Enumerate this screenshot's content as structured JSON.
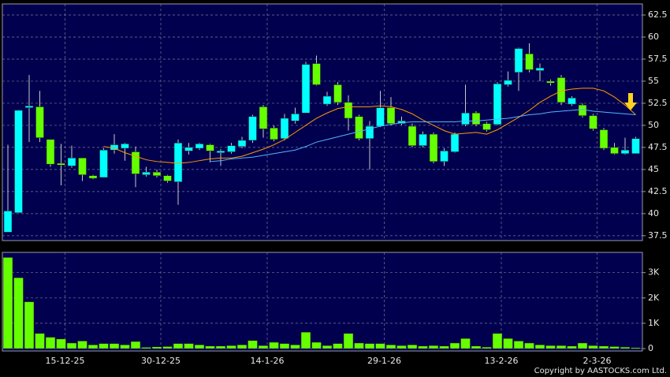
{
  "chart_data": [
    {
      "type": "candlestick",
      "open": [
        37.9,
        40.1,
        52.0,
        52.1,
        48.4,
        45.7,
        45.4,
        46.3,
        44.3,
        44.1,
        47.2,
        47.4,
        47.0,
        44.4,
        44.7,
        44.3,
        43.6,
        47.1,
        47.4,
        47.8,
        46.9,
        47.0,
        47.6,
        48.3,
        52.1,
        49.7,
        48.5,
        50.5,
        51.4,
        57.0,
        52.4,
        54.6,
        52.6,
        51.0,
        48.5,
        49.9,
        52.0,
        50.2,
        49.9,
        47.7,
        49.0,
        45.9,
        47.0,
        50.1,
        51.4,
        50.2,
        50.1,
        54.6,
        56.0,
        58.1,
        56.2,
        55.0,
        55.4,
        52.4,
        52.3,
        51.1,
        49.5,
        47.5,
        46.8,
        46.8
      ],
      "high": [
        47.8,
        51.7,
        55.7,
        53.9,
        48.4,
        47.9,
        47.7,
        46.3,
        44.4,
        47.4,
        49.0,
        48.0,
        47.6,
        45.3,
        45.0,
        44.4,
        48.4,
        48.0,
        48.0,
        47.9,
        47.3,
        48.0,
        48.7,
        51.2,
        52.3,
        50.0,
        51.3,
        52.0,
        57.2,
        57.9,
        53.8,
        54.9,
        53.4,
        51.2,
        50.5,
        53.9,
        53.2,
        51.0,
        50.2,
        49.3,
        49.2,
        47.4,
        49.2,
        54.6,
        51.6,
        50.4,
        54.9,
        56.1,
        58.8,
        59.3,
        57.0,
        55.2,
        55.7,
        53.3,
        52.5,
        51.3,
        49.7,
        48.0,
        48.6,
        48.7
      ],
      "low": [
        37.9,
        40.1,
        48.1,
        48.1,
        45.3,
        43.2,
        45.2,
        43.7,
        43.9,
        44.1,
        46.8,
        46.0,
        43.0,
        44.2,
        44.1,
        43.5,
        41.0,
        46.7,
        47.2,
        45.8,
        45.4,
        46.8,
        47.4,
        48.0,
        48.6,
        48.2,
        48.3,
        50.2,
        51.4,
        54.5,
        52.2,
        52.3,
        49.4,
        48.3,
        45.0,
        49.8,
        50.0,
        50.0,
        47.5,
        47.5,
        45.7,
        45.4,
        46.9,
        49.9,
        49.9,
        49.3,
        50.0,
        54.4,
        53.9,
        56.0,
        55.0,
        54.5,
        52.3,
        52.2,
        50.9,
        49.4,
        47.2,
        46.7,
        46.7,
        46.8
      ],
      "close": [
        40.3,
        51.7,
        52.2,
        48.6,
        45.6,
        45.5,
        46.3,
        44.4,
        44.0,
        47.2,
        47.8,
        47.9,
        44.5,
        44.7,
        44.3,
        43.7,
        48.0,
        47.5,
        47.9,
        47.1,
        47.1,
        47.7,
        48.3,
        51.0,
        49.6,
        48.4,
        50.8,
        51.3,
        56.9,
        54.6,
        53.3,
        52.6,
        50.8,
        48.5,
        49.9,
        52.0,
        50.2,
        50.5,
        47.7,
        49.0,
        45.9,
        47.1,
        49.0,
        51.4,
        50.1,
        49.5,
        54.7,
        55.1,
        58.7,
        56.3,
        56.5,
        54.8,
        52.6,
        53.1,
        51.1,
        49.6,
        47.4,
        46.8,
        47.2,
        48.5
      ],
      "up_color": "#00ffff",
      "down_color": "#66ff00",
      "lines": [
        {
          "color": "#ff9900",
          "values": [
            null,
            null,
            null,
            null,
            null,
            null,
            null,
            null,
            null,
            47.6,
            47.4,
            46.9,
            46.5,
            46.1,
            45.9,
            45.8,
            45.7,
            45.8,
            46.0,
            46.2,
            46.3,
            46.3,
            46.5,
            46.9,
            47.3,
            47.8,
            48.4,
            49.2,
            50.0,
            50.8,
            51.4,
            51.9,
            52.1,
            52.1,
            52.1,
            52.2,
            52.1,
            51.8,
            51.3,
            50.6,
            50.0,
            49.4,
            49.0,
            49.1,
            49.2,
            49.0,
            49.5,
            50.2,
            50.9,
            51.7,
            52.6,
            53.3,
            53.9,
            54.1,
            54.2,
            54.2,
            53.9,
            53.2,
            52.3,
            51.2
          ]
        },
        {
          "color": "#55b4ff",
          "values": [
            null,
            null,
            null,
            null,
            null,
            null,
            null,
            null,
            null,
            null,
            null,
            null,
            null,
            null,
            null,
            null,
            null,
            null,
            null,
            45.9,
            46.0,
            46.2,
            46.3,
            46.4,
            46.6,
            46.8,
            47.0,
            47.2,
            47.6,
            48.1,
            48.4,
            48.7,
            49.0,
            49.3,
            49.6,
            49.9,
            50.1,
            50.3,
            50.4,
            50.4,
            50.4,
            50.4,
            50.4,
            50.5,
            50.5,
            50.6,
            50.7,
            50.8,
            51.0,
            51.2,
            51.3,
            51.5,
            51.6,
            51.7,
            51.8,
            51.6,
            51.5,
            51.4,
            51.3,
            51.2
          ]
        }
      ],
      "ylim": [
        36.95,
        63.75
      ],
      "yticks": [
        37.5,
        40,
        42.5,
        45,
        47.5,
        50,
        52.5,
        55,
        57.5,
        60,
        62.5
      ],
      "grid": true
    },
    {
      "type": "bar",
      "categories": [
        null,
        null,
        null,
        null,
        null,
        "15-12-25",
        null,
        null,
        null,
        null,
        null,
        null,
        null,
        null,
        "30-12-25",
        null,
        null,
        null,
        null,
        null,
        null,
        null,
        null,
        null,
        "14-1-26",
        null,
        null,
        null,
        null,
        null,
        null,
        null,
        null,
        null,
        null,
        "29-1-26",
        null,
        null,
        null,
        null,
        null,
        null,
        null,
        null,
        null,
        null,
        "13-2-26",
        null,
        null,
        null,
        null,
        null,
        null,
        null,
        null,
        "2-3-26",
        null,
        null,
        null,
        null
      ],
      "values": [
        3600,
        2800,
        1850,
        600,
        450,
        380,
        220,
        300,
        150,
        200,
        200,
        150,
        280,
        50,
        70,
        80,
        200,
        200,
        150,
        100,
        100,
        120,
        150,
        320,
        120,
        250,
        200,
        150,
        650,
        250,
        120,
        200,
        600,
        220,
        200,
        200,
        150,
        120,
        150,
        100,
        120,
        100,
        220,
        400,
        100,
        60,
        600,
        400,
        300,
        220,
        150,
        120,
        120,
        100,
        220,
        120,
        100,
        80,
        60,
        40
      ],
      "color": "#66ff00",
      "ylim": [
        0,
        3800
      ],
      "yticks": [
        0,
        {
          "value": 1000,
          "label": "1K"
        },
        {
          "value": 2000,
          "label": "2K"
        },
        {
          "value": 3000,
          "label": "3K"
        }
      ],
      "grid": true,
      "credit": "Copyright by AASTOCKS.com Ltd."
    }
  ]
}
